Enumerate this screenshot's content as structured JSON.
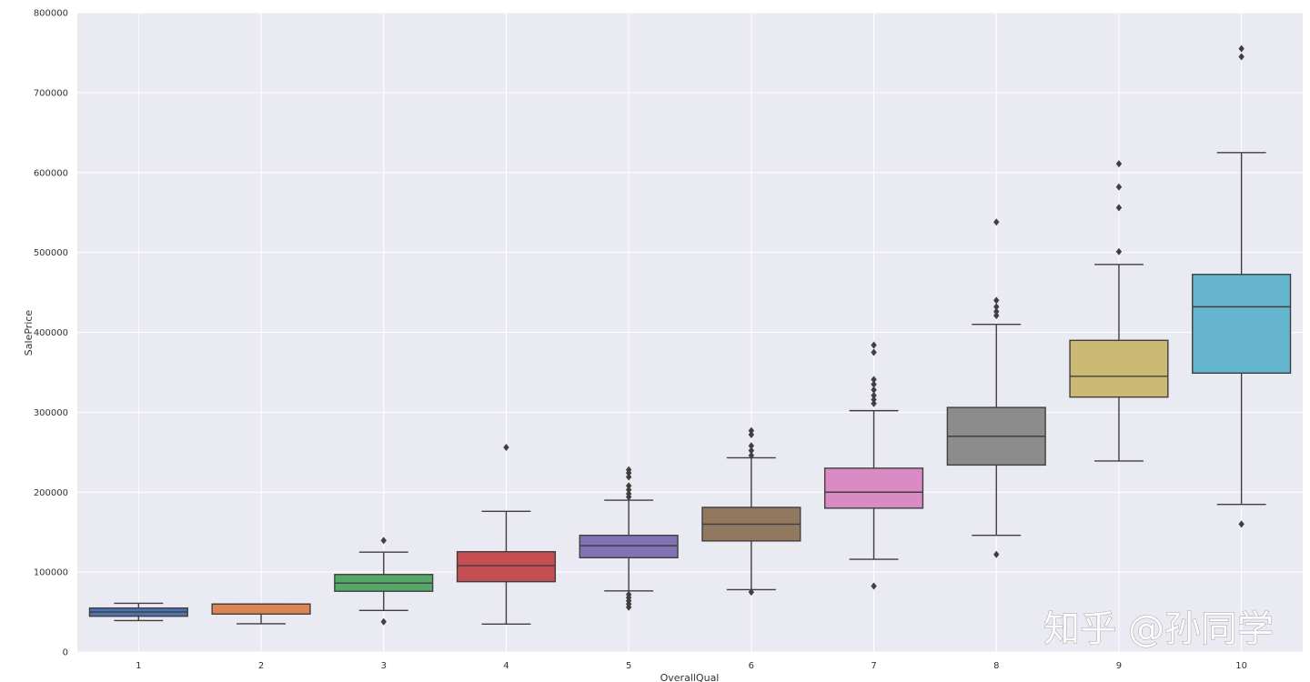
{
  "chart_data": {
    "type": "boxplot",
    "title": "",
    "xlabel": "OverallQual",
    "ylabel": "SalePrice",
    "ylim": [
      0,
      800000
    ],
    "grid": true,
    "y_ticks": [
      "0",
      "100000",
      "200000",
      "300000",
      "400000",
      "500000",
      "600000",
      "700000",
      "800000"
    ],
    "y_tick_values": [
      0,
      100000,
      200000,
      300000,
      400000,
      500000,
      600000,
      700000,
      800000
    ],
    "categories": [
      "1",
      "2",
      "3",
      "4",
      "5",
      "6",
      "7",
      "8",
      "9",
      "10"
    ],
    "boxes": [
      {
        "category": "1",
        "color": "#4c72b0",
        "whisker_low": 39300,
        "q1": 44750,
        "median": 50150,
        "q3": 55000,
        "whisker_high": 61000,
        "outliers": []
      },
      {
        "category": "2",
        "color": "#dd8452",
        "whisker_low": 35311,
        "q1": 47500,
        "median": 60000,
        "q3": 60000,
        "whisker_high": 60000,
        "outliers": []
      },
      {
        "category": "3",
        "color": "#55a868",
        "whisker_low": 52000,
        "q1": 76000,
        "median": 86250,
        "q3": 97000,
        "whisker_high": 125000,
        "outliers": [
          37900,
          139600
        ]
      },
      {
        "category": "4",
        "color": "#c44e52",
        "whisker_low": 34900,
        "q1": 88000,
        "median": 108000,
        "q3": 125500,
        "whisker_high": 176000,
        "outliers": [
          256000
        ]
      },
      {
        "category": "5",
        "color": "#8172b3",
        "whisker_low": 76500,
        "q1": 118000,
        "median": 133000,
        "q3": 146000,
        "whisker_high": 190000,
        "outliers": [
          56000,
          60000,
          64000,
          68000,
          72000,
          194000,
          198000,
          203000,
          208000,
          219000,
          224000,
          228000
        ]
      },
      {
        "category": "6",
        "color": "#937860",
        "whisker_low": 78000,
        "q1": 139000,
        "median": 160000,
        "q3": 181000,
        "whisker_high": 243000,
        "outliers": [
          75000,
          246000,
          252000,
          258000,
          272000,
          277000
        ]
      },
      {
        "category": "7",
        "color": "#da8bc3",
        "whisker_low": 116000,
        "q1": 180000,
        "median": 200000,
        "q3": 230000,
        "whisker_high": 302000,
        "outliers": [
          82500,
          311000,
          316000,
          321000,
          328000,
          335000,
          341000,
          375000,
          384000
        ]
      },
      {
        "category": "8",
        "color": "#8c8c8c",
        "whisker_low": 146000,
        "q1": 234000,
        "median": 270000,
        "q3": 306000,
        "whisker_high": 410000,
        "outliers": [
          122000,
          421000,
          426000,
          432000,
          440000,
          538000
        ]
      },
      {
        "category": "9",
        "color": "#ccb974",
        "whisker_low": 239000,
        "q1": 319000,
        "median": 345000,
        "q3": 390000,
        "whisker_high": 485000,
        "outliers": [
          501000,
          556000,
          582000,
          611000
        ]
      },
      {
        "category": "10",
        "color": "#64b5cd",
        "whisker_low": 184750,
        "q1": 349000,
        "median": 432000,
        "q3": 472500,
        "whisker_high": 625000,
        "outliers": [
          160000,
          745000,
          755000
        ]
      }
    ]
  },
  "watermark": {
    "text": "知乎 @孙同学"
  }
}
